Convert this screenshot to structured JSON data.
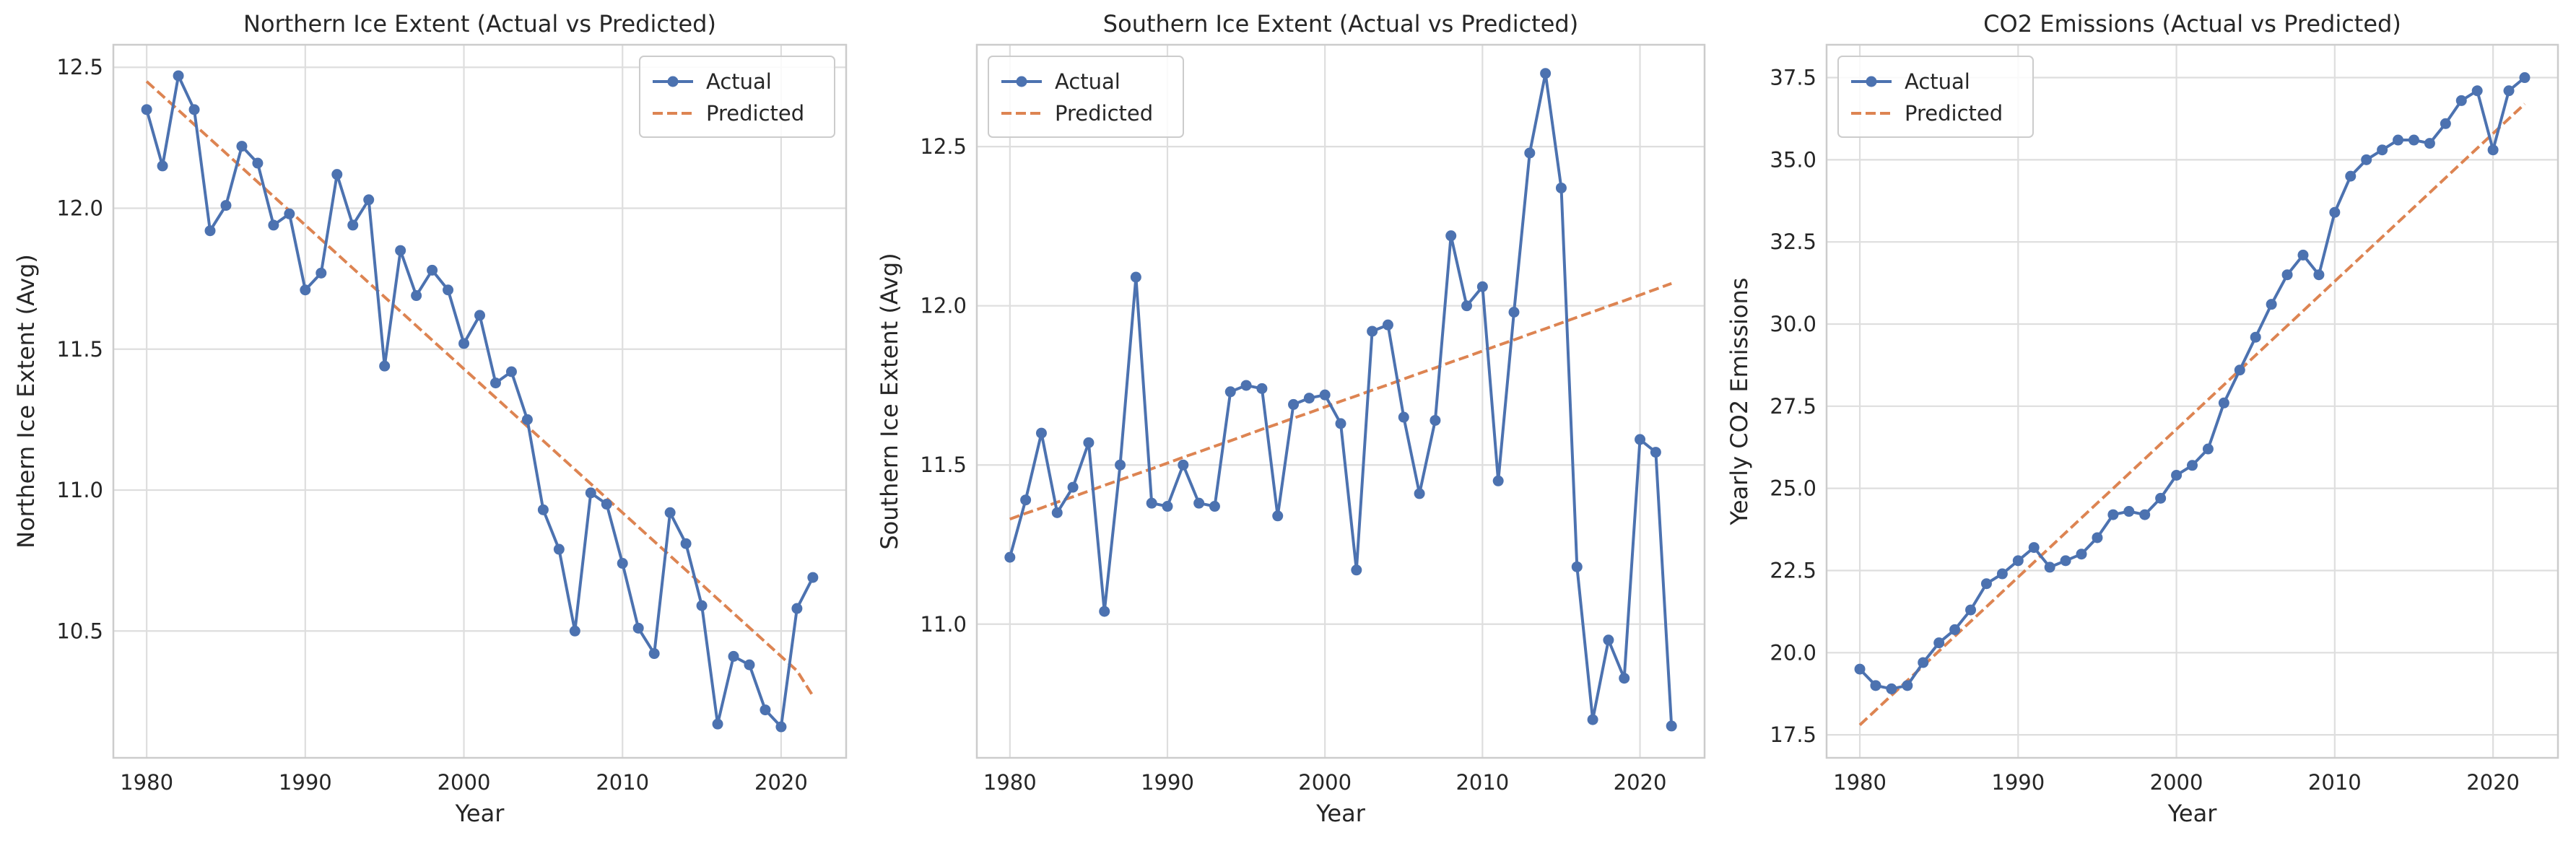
{
  "colors": {
    "actual": "#4c72b0",
    "predicted": "#dd8452",
    "grid": "#dedede",
    "spine": "#cccccc",
    "background": "#ffffff"
  },
  "chart_data": [
    {
      "type": "line",
      "title": "Northern Ice Extent (Actual vs Predicted)",
      "xlabel": "Year",
      "ylabel": "Northern Ice Extent (Avg)",
      "xlim": [
        1977.9,
        2024.1
      ],
      "ylim": [
        10.05,
        12.58
      ],
      "xticks": [
        1980,
        1990,
        2000,
        2010,
        2020
      ],
      "yticks": [
        10.5,
        11.0,
        11.5,
        12.0,
        12.5
      ],
      "ytick_labels": [
        "10.5",
        "11.0",
        "11.5",
        "12.0",
        "12.5"
      ],
      "grid": true,
      "legend_position": "upper right",
      "x": [
        1980,
        1981,
        1982,
        1983,
        1984,
        1985,
        1986,
        1987,
        1988,
        1989,
        1990,
        1991,
        1992,
        1993,
        1994,
        1995,
        1996,
        1997,
        1998,
        1999,
        2000,
        2001,
        2002,
        2003,
        2004,
        2005,
        2006,
        2007,
        2008,
        2009,
        2010,
        2011,
        2012,
        2013,
        2014,
        2015,
        2016,
        2017,
        2018,
        2019,
        2020,
        2021,
        2022
      ],
      "series": [
        {
          "name": "Actual",
          "style": "solid-markers",
          "values": [
            12.35,
            12.15,
            12.47,
            12.35,
            11.92,
            12.01,
            12.22,
            12.16,
            11.94,
            11.98,
            11.71,
            11.77,
            12.12,
            11.94,
            12.03,
            11.44,
            11.85,
            11.69,
            11.78,
            11.71,
            11.52,
            11.62,
            11.38,
            11.42,
            11.25,
            10.93,
            10.79,
            10.5,
            10.99,
            10.95,
            10.74,
            10.51,
            10.42,
            10.92,
            10.81,
            10.59,
            10.17,
            10.41,
            10.38,
            10.22,
            10.16,
            10.58,
            10.69
          ]
        },
        {
          "name": "Predicted",
          "style": "dashed",
          "values": [
            12.45,
            12.399,
            12.348,
            12.297,
            12.246,
            12.195,
            12.144,
            12.093,
            12.042,
            11.991,
            11.94,
            11.889,
            11.838,
            11.787,
            11.736,
            11.685,
            11.634,
            11.583,
            11.532,
            11.481,
            11.43,
            11.379,
            11.328,
            11.277,
            11.226,
            11.175,
            11.124,
            11.073,
            11.022,
            10.971,
            10.92,
            10.869,
            10.818,
            10.767,
            10.716,
            10.665,
            10.614,
            10.563,
            10.512,
            10.461,
            10.41,
            10.359,
            10.27
          ]
        }
      ]
    },
    {
      "type": "line",
      "title": "Southern Ice Extent (Actual vs Predicted)",
      "xlabel": "Year",
      "ylabel": "Southern Ice Extent (Avg)",
      "xlim": [
        1977.9,
        2024.1
      ],
      "ylim": [
        10.58,
        12.82
      ],
      "xticks": [
        1980,
        1990,
        2000,
        2010,
        2020
      ],
      "yticks": [
        11.0,
        11.5,
        12.0,
        12.5
      ],
      "ytick_labels": [
        "11.0",
        "11.5",
        "12.0",
        "12.5"
      ],
      "grid": true,
      "legend_position": "upper left",
      "x": [
        1980,
        1981,
        1982,
        1983,
        1984,
        1985,
        1986,
        1987,
        1988,
        1989,
        1990,
        1991,
        1992,
        1993,
        1994,
        1995,
        1996,
        1997,
        1998,
        1999,
        2000,
        2001,
        2002,
        2003,
        2004,
        2005,
        2006,
        2007,
        2008,
        2009,
        2010,
        2011,
        2012,
        2013,
        2014,
        2015,
        2016,
        2017,
        2018,
        2019,
        2020,
        2021,
        2022
      ],
      "series": [
        {
          "name": "Actual",
          "style": "solid-markers",
          "values": [
            11.21,
            11.39,
            11.6,
            11.35,
            11.43,
            11.57,
            11.04,
            11.5,
            12.09,
            11.38,
            11.37,
            11.5,
            11.38,
            11.37,
            11.73,
            11.75,
            11.74,
            11.34,
            11.69,
            11.71,
            11.72,
            11.63,
            11.17,
            11.92,
            11.94,
            11.65,
            11.41,
            11.64,
            12.22,
            12.0,
            12.06,
            11.45,
            11.98,
            12.48,
            12.73,
            12.37,
            11.18,
            10.7,
            10.95,
            10.83,
            11.58,
            11.54,
            10.68
          ]
        },
        {
          "name": "Predicted",
          "style": "dashed",
          "values": [
            11.33,
            11.348,
            11.365,
            11.383,
            11.4,
            11.418,
            11.436,
            11.453,
            11.471,
            11.488,
            11.506,
            11.524,
            11.541,
            11.559,
            11.576,
            11.594,
            11.612,
            11.629,
            11.647,
            11.664,
            11.682,
            11.7,
            11.717,
            11.735,
            11.752,
            11.77,
            11.788,
            11.805,
            11.823,
            11.84,
            11.858,
            11.876,
            11.893,
            11.911,
            11.928,
            11.946,
            11.964,
            11.981,
            11.999,
            12.016,
            12.034,
            12.052,
            12.07
          ]
        }
      ]
    },
    {
      "type": "line",
      "title": "CO2 Emissions (Actual vs Predicted)",
      "xlabel": "Year",
      "ylabel": "Yearly CO2 Emissions",
      "xlim": [
        1977.9,
        2024.1
      ],
      "ylim": [
        16.8,
        38.5
      ],
      "xticks": [
        1980,
        1990,
        2000,
        2010,
        2020
      ],
      "yticks": [
        17.5,
        20.0,
        22.5,
        25.0,
        27.5,
        30.0,
        32.5,
        35.0,
        37.5
      ],
      "ytick_labels": [
        "17.5",
        "20.0",
        "22.5",
        "25.0",
        "27.5",
        "30.0",
        "32.5",
        "35.0",
        "37.5"
      ],
      "grid": true,
      "legend_position": "upper left",
      "x": [
        1980,
        1981,
        1982,
        1983,
        1984,
        1985,
        1986,
        1987,
        1988,
        1989,
        1990,
        1991,
        1992,
        1993,
        1994,
        1995,
        1996,
        1997,
        1998,
        1999,
        2000,
        2001,
        2002,
        2003,
        2004,
        2005,
        2006,
        2007,
        2008,
        2009,
        2010,
        2011,
        2012,
        2013,
        2014,
        2015,
        2016,
        2017,
        2018,
        2019,
        2020,
        2021,
        2022
      ],
      "series": [
        {
          "name": "Actual",
          "style": "solid-markers",
          "values": [
            19.5,
            19.0,
            18.9,
            19.0,
            19.7,
            20.3,
            20.7,
            21.3,
            22.1,
            22.4,
            22.8,
            23.2,
            22.6,
            22.8,
            23.0,
            23.5,
            24.2,
            24.3,
            24.2,
            24.7,
            25.4,
            25.7,
            26.2,
            27.6,
            28.6,
            29.6,
            30.6,
            31.5,
            32.1,
            31.5,
            33.4,
            34.5,
            35.0,
            35.3,
            35.6,
            35.6,
            35.5,
            36.1,
            36.8,
            37.1,
            35.3,
            37.1,
            37.5
          ]
        },
        {
          "name": "Predicted",
          "style": "dashed",
          "values": [
            17.8,
            18.25,
            18.7,
            19.15,
            19.6,
            20.05,
            20.5,
            20.95,
            21.4,
            21.85,
            22.3,
            22.75,
            23.2,
            23.65,
            24.1,
            24.55,
            25.0,
            25.45,
            25.9,
            26.35,
            26.8,
            27.25,
            27.7,
            28.15,
            28.6,
            29.05,
            29.5,
            29.95,
            30.4,
            30.85,
            31.3,
            31.75,
            32.2,
            32.65,
            33.1,
            33.55,
            34.0,
            34.45,
            34.9,
            35.35,
            35.8,
            36.25,
            36.7
          ]
        }
      ]
    }
  ]
}
